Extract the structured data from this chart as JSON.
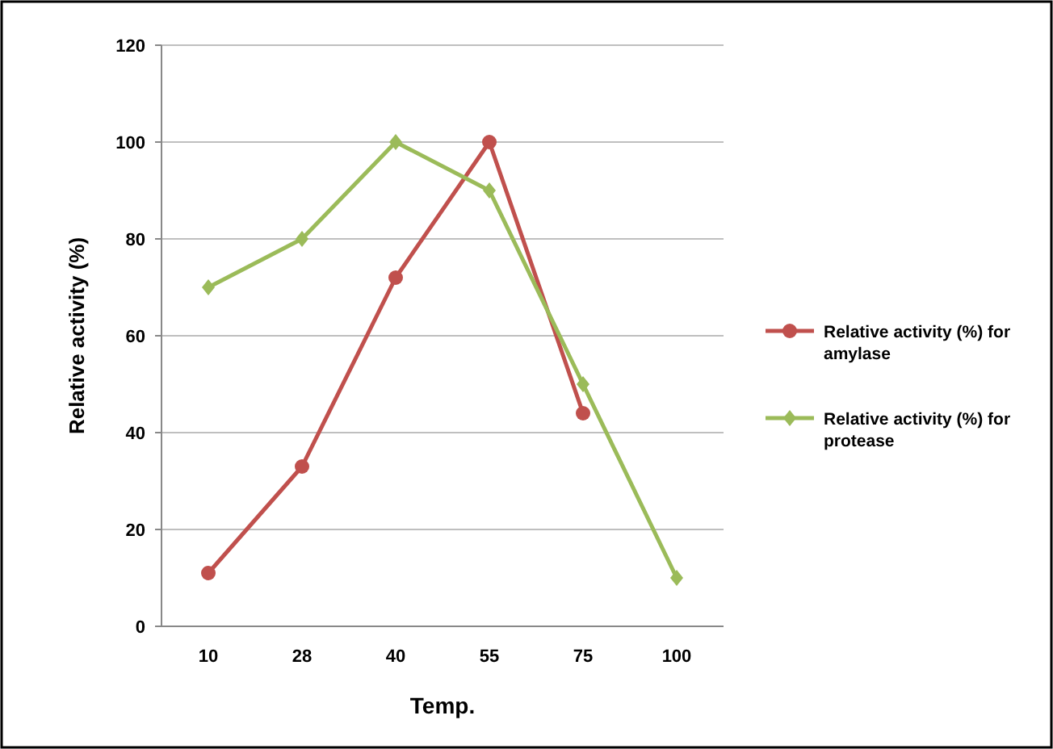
{
  "chart_data": {
    "type": "line",
    "xlabel": "Temp.",
    "ylabel": "Relative activity (%)",
    "categories": [
      "10",
      "28",
      "40",
      "55",
      "75",
      "100"
    ],
    "series": [
      {
        "name": "Relative activity (%) for amylase",
        "color": "#c0504d",
        "marker": "circle",
        "values": [
          11,
          33,
          72,
          100,
          44,
          null
        ]
      },
      {
        "name": "Relative activity (%) for protease",
        "color": "#9bbb59",
        "marker": "diamond",
        "values": [
          70,
          80,
          100,
          90,
          50,
          10
        ]
      }
    ],
    "ylim": [
      0,
      120
    ],
    "yticks": [
      0,
      20,
      40,
      60,
      80,
      100,
      120
    ],
    "grid": "y",
    "legend": "right",
    "line_style": "solid"
  }
}
